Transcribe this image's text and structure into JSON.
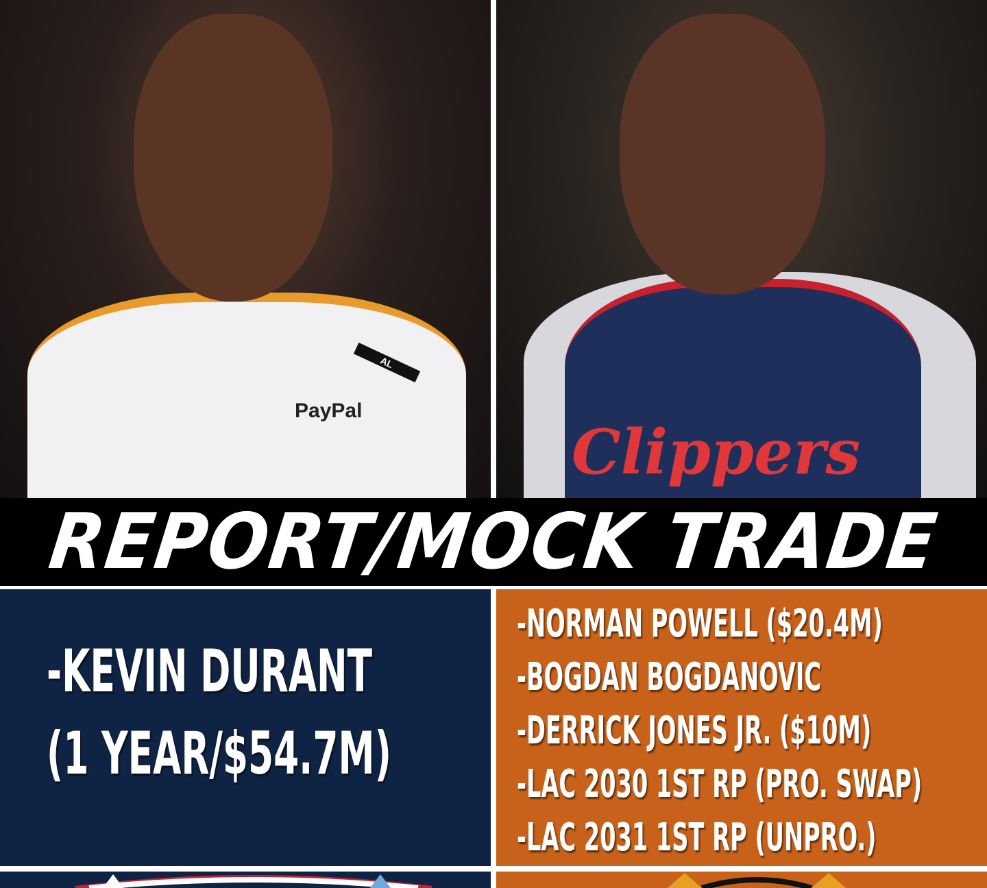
{
  "banner": {
    "title": "REPORT/MOCK TRADE"
  },
  "left_photo": {
    "jersey_sponsor": "PayPal",
    "patch": "AL"
  },
  "right_photo": {
    "jersey_text": "Clippers"
  },
  "left_panel": {
    "player": "-KEVIN DURANT",
    "contract": "(1 YEAR/$54.7M)"
  },
  "right_panel": {
    "items": [
      "-NORMAN POWELL ($20.4M)",
      "-BOGDAN BOGDANOVIC",
      "-DERRICK JONES JR. ($10M)",
      "-LAC 2030 1ST RP (PRO. SWAP)",
      "-LAC 2031 1ST RP (UNPRO.)"
    ]
  },
  "colors": {
    "navy": "#0f2444",
    "orange": "#c8621a",
    "banner": "#000000"
  }
}
